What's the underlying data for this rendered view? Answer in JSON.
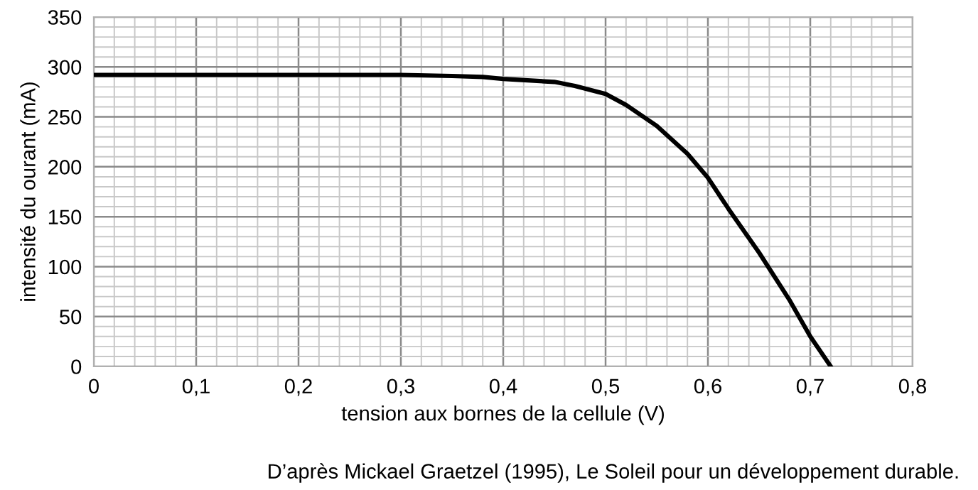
{
  "chart_data": {
    "type": "line",
    "xlabel": "tension aux bornes de la cellule (V)",
    "ylabel": "intensité du ourant (mA)",
    "annotations": [
      "D’après Mickael Graetzel (1995), Le Soleil pour un développement durable."
    ],
    "series": [
      {
        "color": "#000000",
        "x": [
          0,
          0.1,
          0.2,
          0.3,
          0.35,
          0.38,
          0.4,
          0.45,
          0.47,
          0.5,
          0.52,
          0.55,
          0.58,
          0.6,
          0.62,
          0.65,
          0.68,
          0.7,
          0.72
        ],
        "values": [
          292,
          292,
          292,
          292,
          291,
          290,
          288,
          285,
          281,
          273,
          262,
          241,
          213,
          189,
          158,
          114,
          66,
          30,
          0
        ]
      }
    ],
    "xlim": [
      0,
      0.8
    ],
    "ylim": [
      0,
      350
    ],
    "xticks": [
      0,
      {
        "value": 0.1,
        "label": "0,1"
      },
      {
        "value": 0.2,
        "label": "0,2"
      },
      {
        "value": 0.3,
        "label": "0,3"
      },
      {
        "value": 0.4,
        "label": "0,4"
      },
      {
        "value": 0.5,
        "label": "0,5"
      },
      {
        "value": 0.6,
        "label": "0,6"
      },
      {
        "value": 0.7,
        "label": "0,7"
      },
      {
        "value": 0.8,
        "label": "0,8"
      }
    ],
    "yticks": [
      0,
      50,
      100,
      150,
      200,
      250,
      300,
      350
    ],
    "grid": true,
    "marker": "none",
    "line_style": "solid",
    "legend": false
  }
}
